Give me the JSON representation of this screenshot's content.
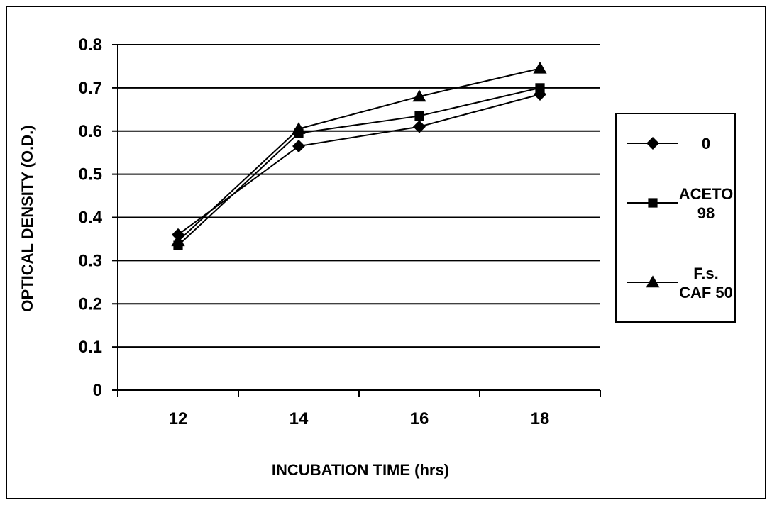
{
  "chart_data": {
    "type": "line",
    "title": "",
    "xlabel": "INCUBATION TIME (hrs)",
    "ylabel": "OPTICAL DENSITY (O.D.)",
    "categories": [
      "12",
      "14",
      "16",
      "18"
    ],
    "ylim": [
      0,
      0.8
    ],
    "y_ticks": [
      "0",
      "0.1",
      "0.2",
      "0.3",
      "0.4",
      "0.5",
      "0.6",
      "0.7",
      "0.8"
    ],
    "grid": true,
    "legend_position": "right",
    "series": [
      {
        "name": "0",
        "marker": "diamond",
        "values": [
          0.36,
          0.565,
          0.61,
          0.685
        ]
      },
      {
        "name": "ACETO 98",
        "label_lines": [
          "ACETO",
          "98"
        ],
        "marker": "square",
        "values": [
          0.335,
          0.595,
          0.635,
          0.7
        ]
      },
      {
        "name": "F.s. CAF 50",
        "label_lines": [
          "F.s.",
          "CAF 50"
        ],
        "marker": "triangle",
        "values": [
          0.345,
          0.605,
          0.68,
          0.745
        ]
      }
    ],
    "colors": {
      "line": "#000000",
      "grid": "#000000",
      "background": "#ffffff"
    }
  }
}
